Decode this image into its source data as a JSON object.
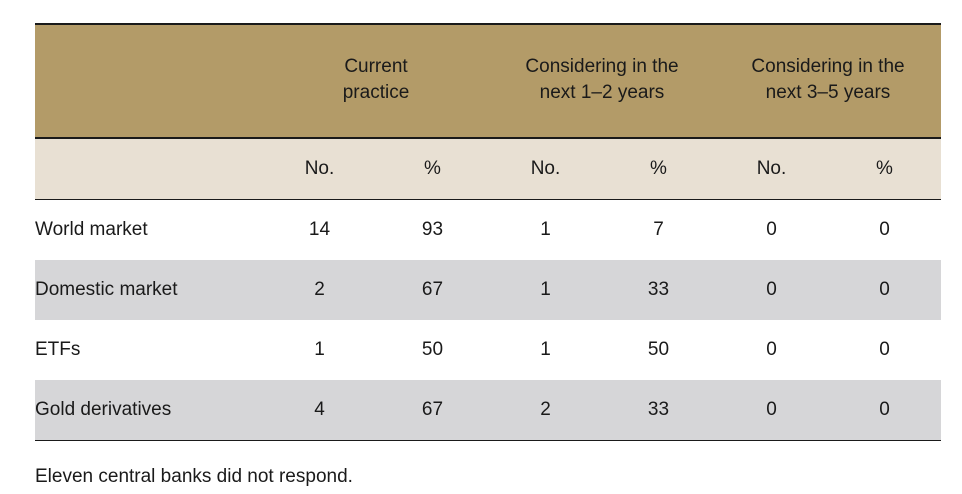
{
  "table": {
    "groups": [
      "Current\npractice",
      "Considering in the\nnext 1–2 years",
      "Considering in the\nnext 3–5 years"
    ],
    "subheaders": [
      "No.",
      "%",
      "No.",
      "%",
      "No.",
      "%"
    ],
    "rows": [
      {
        "label": "World market",
        "values": [
          "14",
          "93",
          "1",
          "7",
          "0",
          "0"
        ]
      },
      {
        "label": "Domestic market",
        "values": [
          "2",
          "67",
          "1",
          "33",
          "0",
          "0"
        ]
      },
      {
        "label": "ETFs",
        "values": [
          "1",
          "50",
          "1",
          "50",
          "0",
          "0"
        ]
      },
      {
        "label": "Gold derivatives",
        "values": [
          "4",
          "67",
          "2",
          "33",
          "0",
          "0"
        ]
      }
    ]
  },
  "note": "Eleven central banks did not respond.",
  "colors": {
    "header_bg": "#b39b68",
    "subheader_bg": "#e8e0d3",
    "row_shade": "#d6d6d8"
  }
}
